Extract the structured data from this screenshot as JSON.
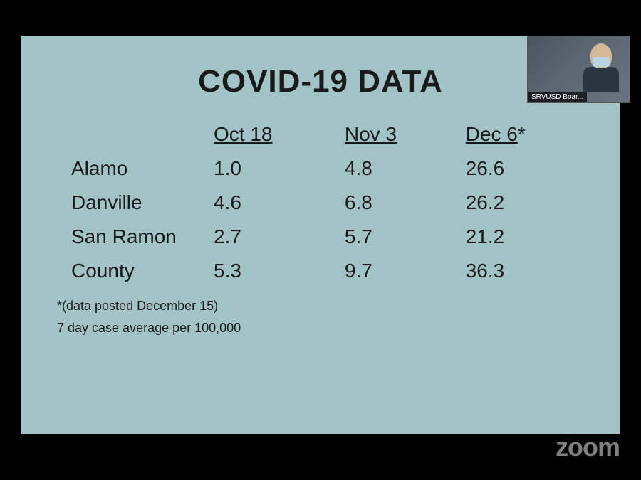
{
  "slide": {
    "title": "COVID-19 DATA",
    "background_color": "#a3c4c6",
    "text_color": "#1a1a1a",
    "title_fontsize": 44,
    "cell_fontsize": 28,
    "footnote_fontsize": 18,
    "table": {
      "type": "table",
      "columns": [
        "",
        "Oct 18",
        "Nov 3",
        "Dec 6"
      ],
      "column_has_asterisk": [
        false,
        false,
        false,
        true
      ],
      "rows": [
        [
          "Alamo",
          "1.0",
          "4.8",
          "26.6"
        ],
        [
          "Danville",
          "4.6",
          "6.8",
          "26.2"
        ],
        [
          "San Ramon",
          "2.7",
          "5.7",
          "21.2"
        ],
        [
          "County",
          "5.3",
          "9.7",
          "36.3"
        ]
      ]
    },
    "footnote1": "*(data posted December 15)",
    "footnote2": "7 day case average per 100,000"
  },
  "participant": {
    "label": "SRVUSD Boar...",
    "mask_color": "#b8d4e0",
    "skin_color": "#d4b896",
    "suit_color": "#2a3540"
  },
  "watermark": "zoom",
  "colors": {
    "page_background": "#000000",
    "watermark_color": "rgba(255,255,255,0.5)"
  }
}
